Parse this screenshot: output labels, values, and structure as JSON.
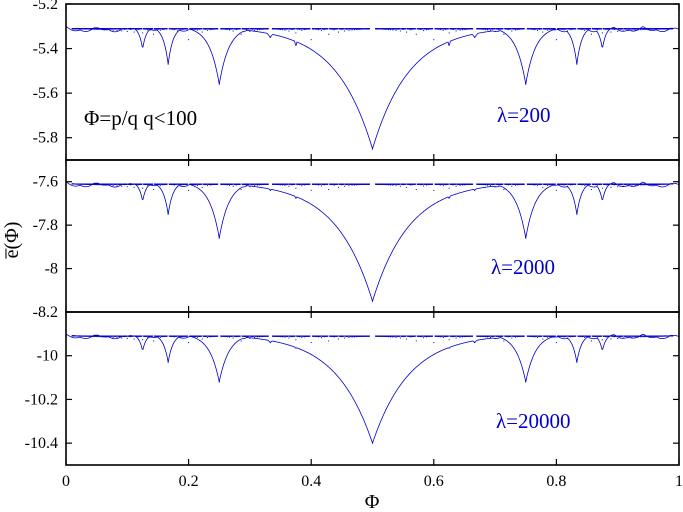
{
  "chart_data": {
    "type": "scatter",
    "xlabel": "Φ",
    "ylabel": "e̅(Φ)",
    "xlim": [
      0,
      1
    ],
    "x_ticks": [
      "0",
      "0.2",
      "0.4",
      "0.6",
      "0.8",
      "1"
    ],
    "note": "Φ=p/q  q<100",
    "color": "#0000cc",
    "panels": [
      {
        "label": "λ=200",
        "ylim": [
          -5.9,
          -5.2
        ],
        "y_ticks": [
          "-5.2",
          "-5.4",
          "-5.6",
          "-5.8"
        ],
        "baseline": -5.3,
        "minimum_at_half": -5.85,
        "dip_at_quarter": -5.56,
        "dip_at_third": -5.35,
        "dip_at_fifth": -5.36,
        "dip_at_sixth": -5.47
      },
      {
        "label": "λ=2000",
        "ylim": [
          -8.2,
          -7.5
        ],
        "y_ticks": [
          "-7.6",
          "-7.8",
          "-8",
          "-8.2"
        ],
        "baseline": -7.6,
        "minimum_at_half": -8.15,
        "dip_at_quarter": -7.86,
        "dip_at_third": -7.64,
        "dip_at_fifth": -7.64,
        "dip_at_sixth": -7.75
      },
      {
        "label": "λ=20000",
        "ylim": [
          -10.5,
          -9.8
        ],
        "y_ticks": [
          "-10",
          "-10.2",
          "-10.4"
        ],
        "baseline": -9.9,
        "minimum_at_half": -10.4,
        "dip_at_quarter": -10.12,
        "dip_at_third": -9.94,
        "dip_at_fifth": -9.94,
        "dip_at_sixth": -10.03
      }
    ]
  }
}
